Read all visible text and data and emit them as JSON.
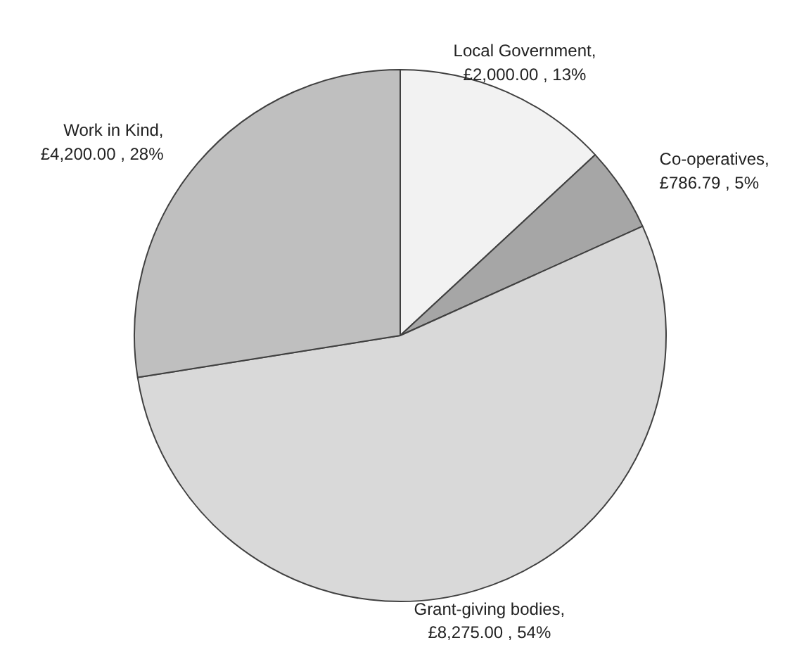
{
  "chart_data": {
    "type": "pie",
    "categories": [
      "Local Government",
      "Co-operatives",
      "Grant-giving bodies",
      "Work in Kind"
    ],
    "values": [
      2000.0,
      786.79,
      8275.0,
      4200.0
    ],
    "value_labels": [
      ",\n£2,000.00 , 13%",
      ",\n£786.79 , 5%",
      ",\n£8,275.00 , 54%",
      ",\n£4,200.00 , 28%"
    ],
    "colors": [
      "#f2f2f2",
      "#a6a6a6",
      "#d9d9d9",
      "#bfbfbf"
    ]
  }
}
